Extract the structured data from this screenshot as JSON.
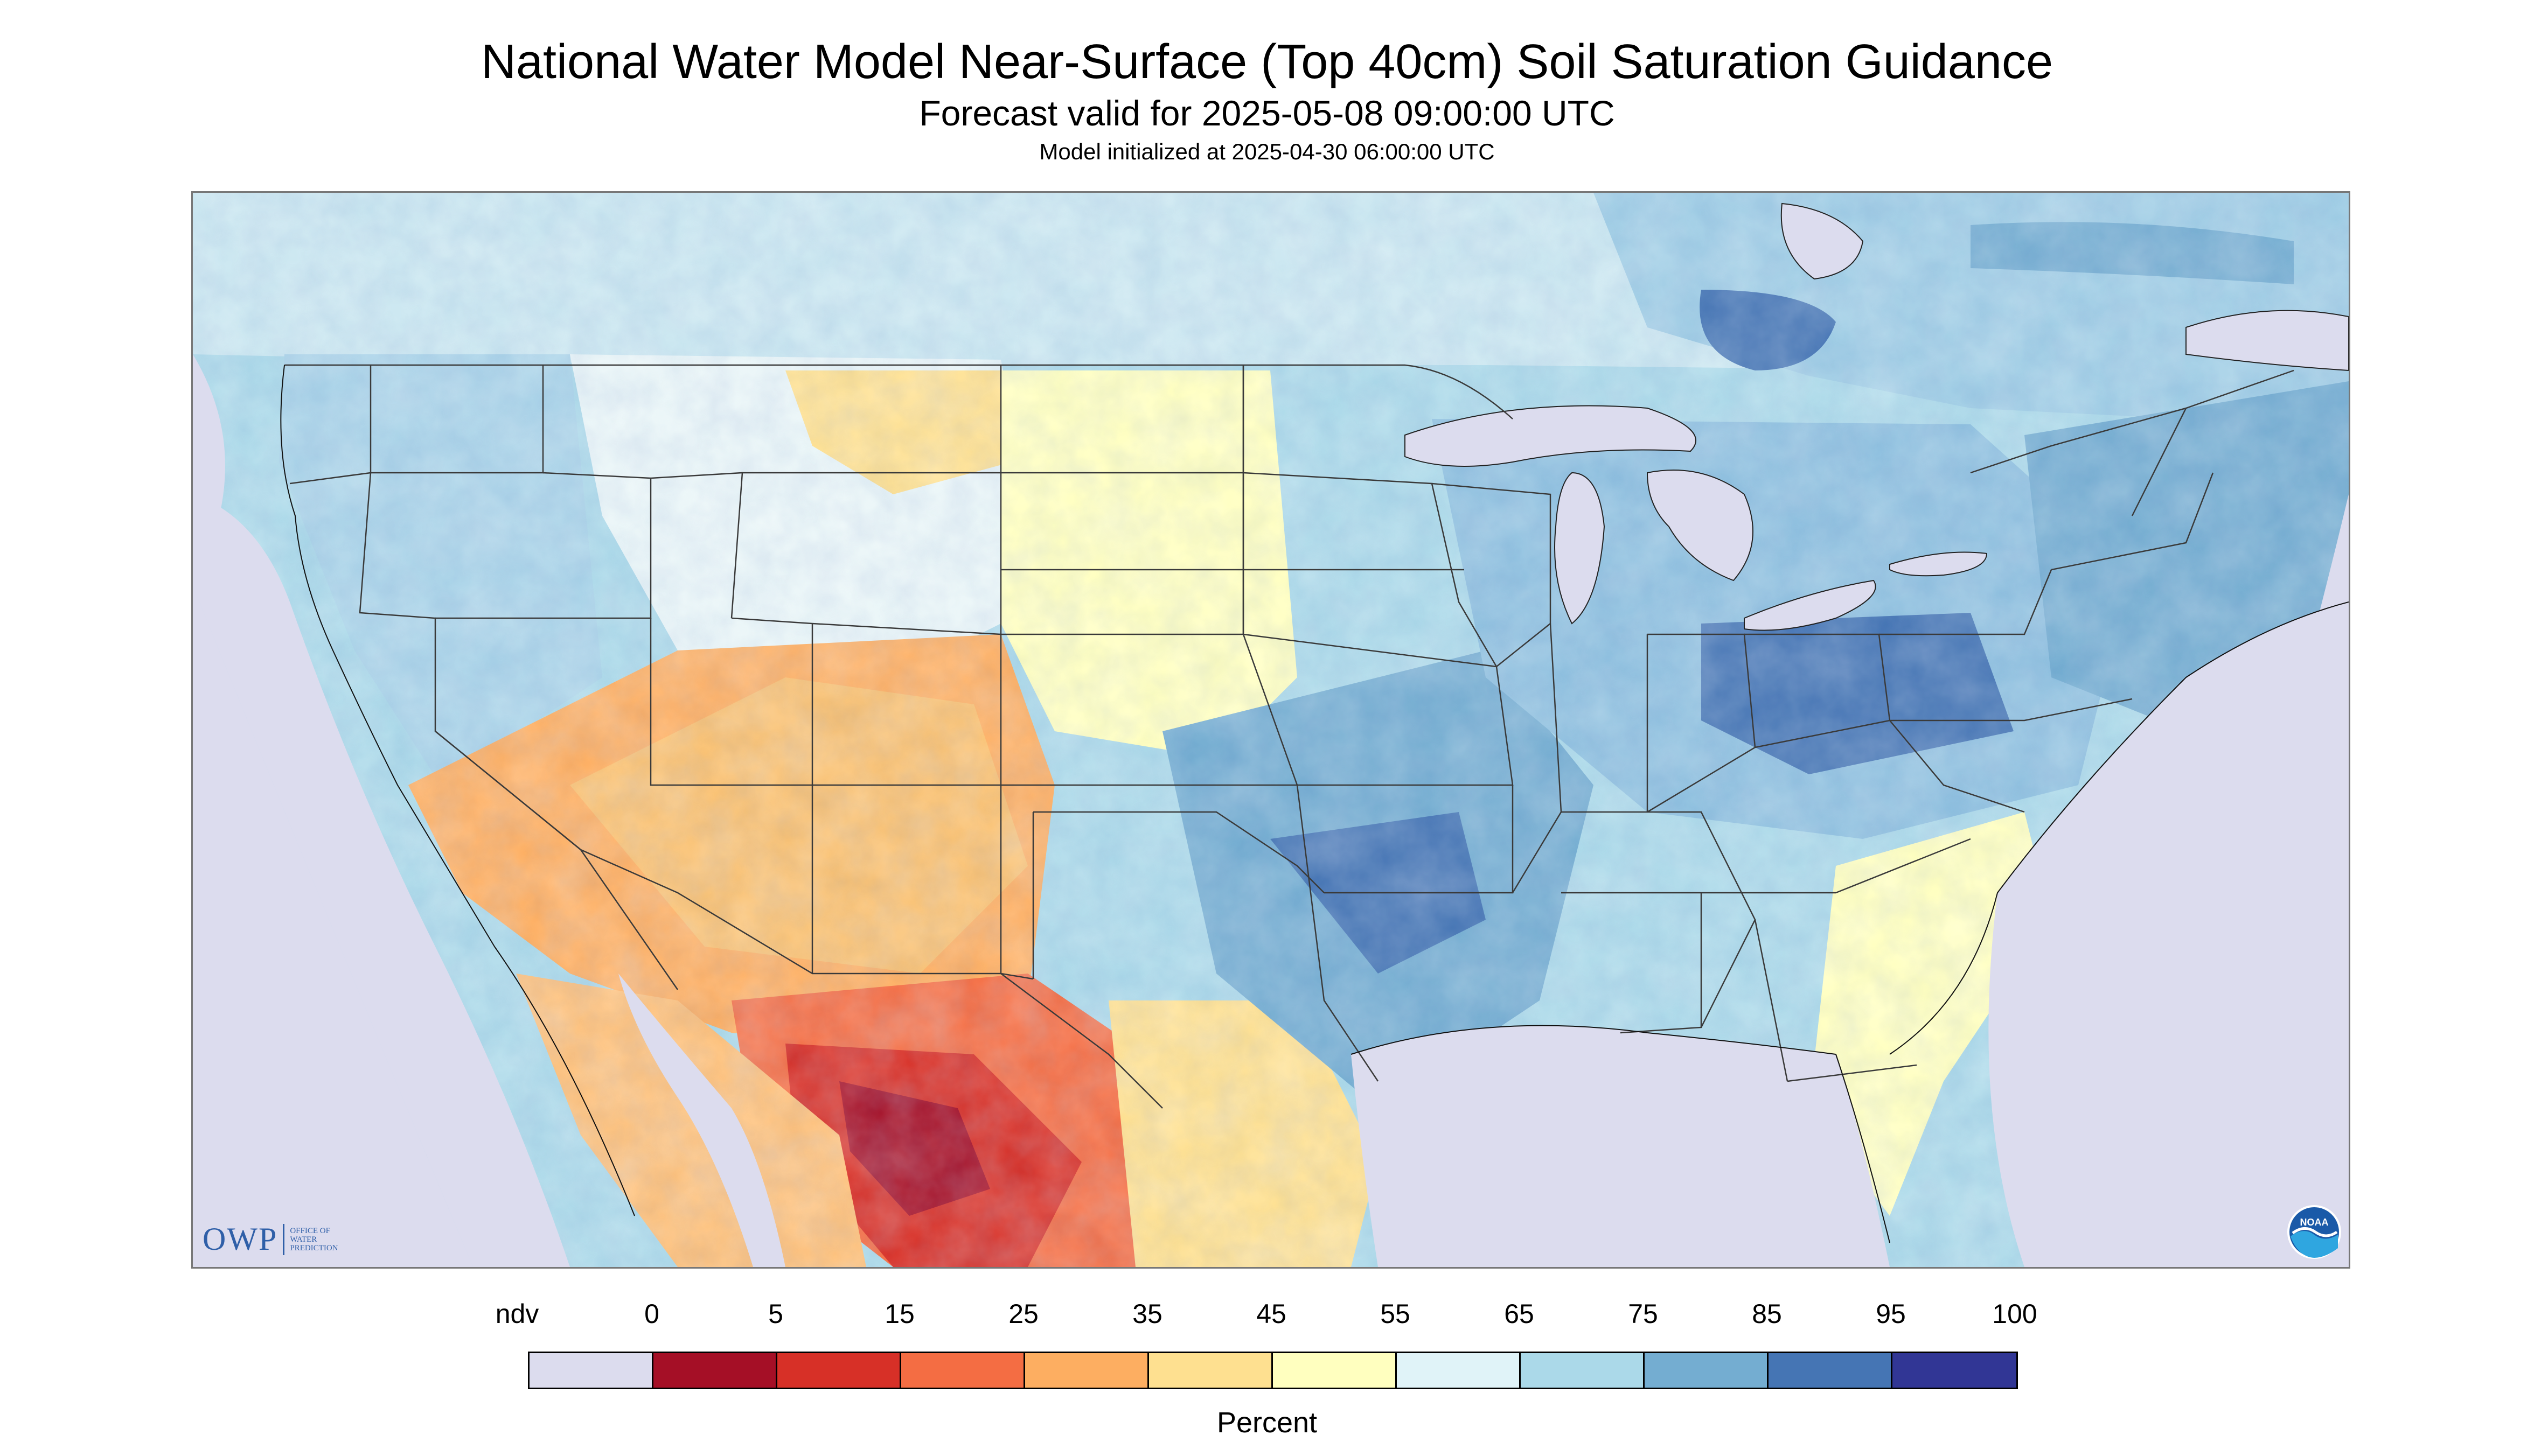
{
  "header": {
    "title": "National Water Model Near-Surface (Top 40cm) Soil Saturation Guidance",
    "subtitle": "Forecast valid for 2025-05-08 09:00:00 UTC",
    "initialized": "Model initialized at 2025-04-30 06:00:00 UTC"
  },
  "map": {
    "region": "CONUS",
    "variable": "Soil saturation, top 40cm",
    "logo_left": {
      "mark": "OWP",
      "text": "OFFICE OF WATER PREDICTION"
    },
    "logo_right": {
      "mark": "NOAA"
    },
    "colors": {
      "nodata": "#dcdcee",
      "water": "#dcdcee",
      "state_lines": "#3a3a3a"
    }
  },
  "legend": {
    "title": "Percent",
    "ticks": [
      "ndv",
      "0",
      "5",
      "15",
      "25",
      "35",
      "45",
      "55",
      "65",
      "75",
      "85",
      "95",
      "100"
    ],
    "bins": [
      {
        "label": "ndv",
        "color": "#dcdcee"
      },
      {
        "label": "0-5",
        "color": "#a50f26"
      },
      {
        "label": "5-15",
        "color": "#d73027"
      },
      {
        "label": "15-25",
        "color": "#f46d43"
      },
      {
        "label": "25-35",
        "color": "#fdae61"
      },
      {
        "label": "35-45",
        "color": "#fee090"
      },
      {
        "label": "45-55",
        "color": "#ffffbf"
      },
      {
        "label": "55-65",
        "color": "#e0f3f8"
      },
      {
        "label": "65-75",
        "color": "#abd9e9"
      },
      {
        "label": "75-85",
        "color": "#74add1"
      },
      {
        "label": "85-95",
        "color": "#4575b4"
      },
      {
        "label": "95-100",
        "color": "#313695"
      }
    ]
  }
}
